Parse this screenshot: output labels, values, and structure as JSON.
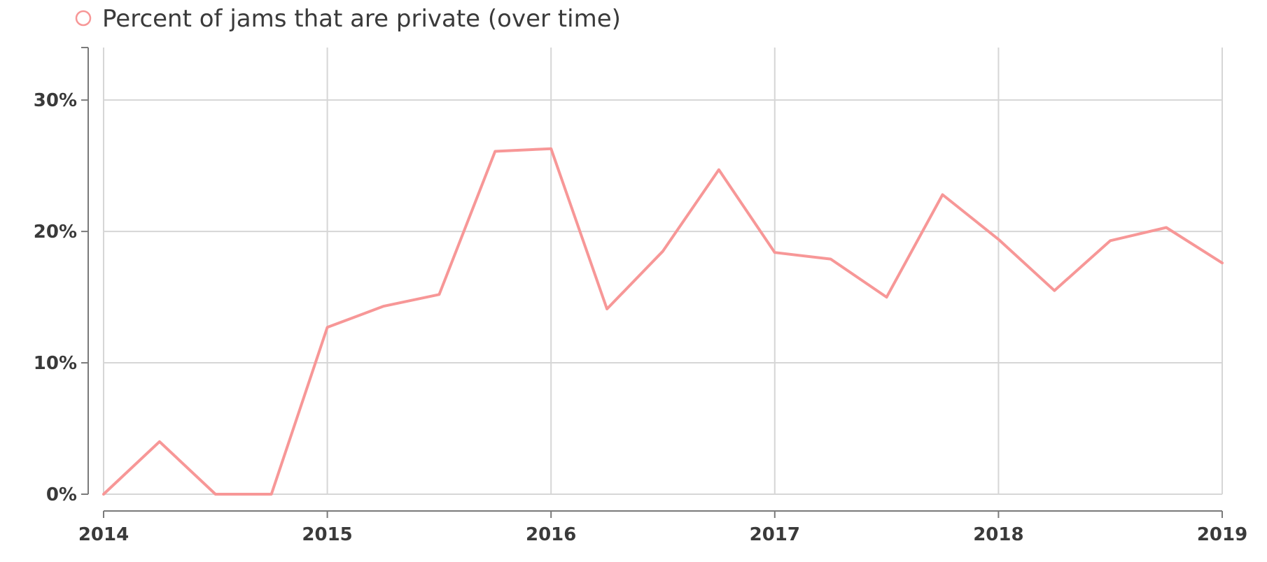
{
  "chart_data": {
    "type": "line",
    "legend_position": "top-left",
    "grid": true,
    "x_ticks": [
      "2014",
      "2015",
      "2016",
      "2017",
      "2018",
      "2019"
    ],
    "x_range": [
      2014,
      2019
    ],
    "y_ticks": [
      "0%",
      "10%",
      "20%",
      "30%"
    ],
    "y_range": [
      0,
      34
    ],
    "series": [
      {
        "name": "Percent of jams that are private (over time)",
        "color": "#f79797",
        "points": [
          {
            "x": 2014.0,
            "y": 0.0
          },
          {
            "x": 2014.25,
            "y": 4.0
          },
          {
            "x": 2014.5,
            "y": 0.0
          },
          {
            "x": 2014.75,
            "y": 0.0
          },
          {
            "x": 2015.0,
            "y": 12.7
          },
          {
            "x": 2015.25,
            "y": 14.3
          },
          {
            "x": 2015.5,
            "y": 15.2
          },
          {
            "x": 2015.75,
            "y": 26.1
          },
          {
            "x": 2016.0,
            "y": 26.3
          },
          {
            "x": 2016.25,
            "y": 14.1
          },
          {
            "x": 2016.5,
            "y": 18.5
          },
          {
            "x": 2016.75,
            "y": 24.7
          },
          {
            "x": 2017.0,
            "y": 18.4
          },
          {
            "x": 2017.25,
            "y": 17.9
          },
          {
            "x": 2017.5,
            "y": 15.0
          },
          {
            "x": 2017.75,
            "y": 22.8
          },
          {
            "x": 2018.0,
            "y": 19.4
          },
          {
            "x": 2018.25,
            "y": 15.5
          },
          {
            "x": 2018.5,
            "y": 19.3
          },
          {
            "x": 2018.75,
            "y": 20.3
          },
          {
            "x": 2019.0,
            "y": 17.6
          }
        ]
      }
    ]
  }
}
